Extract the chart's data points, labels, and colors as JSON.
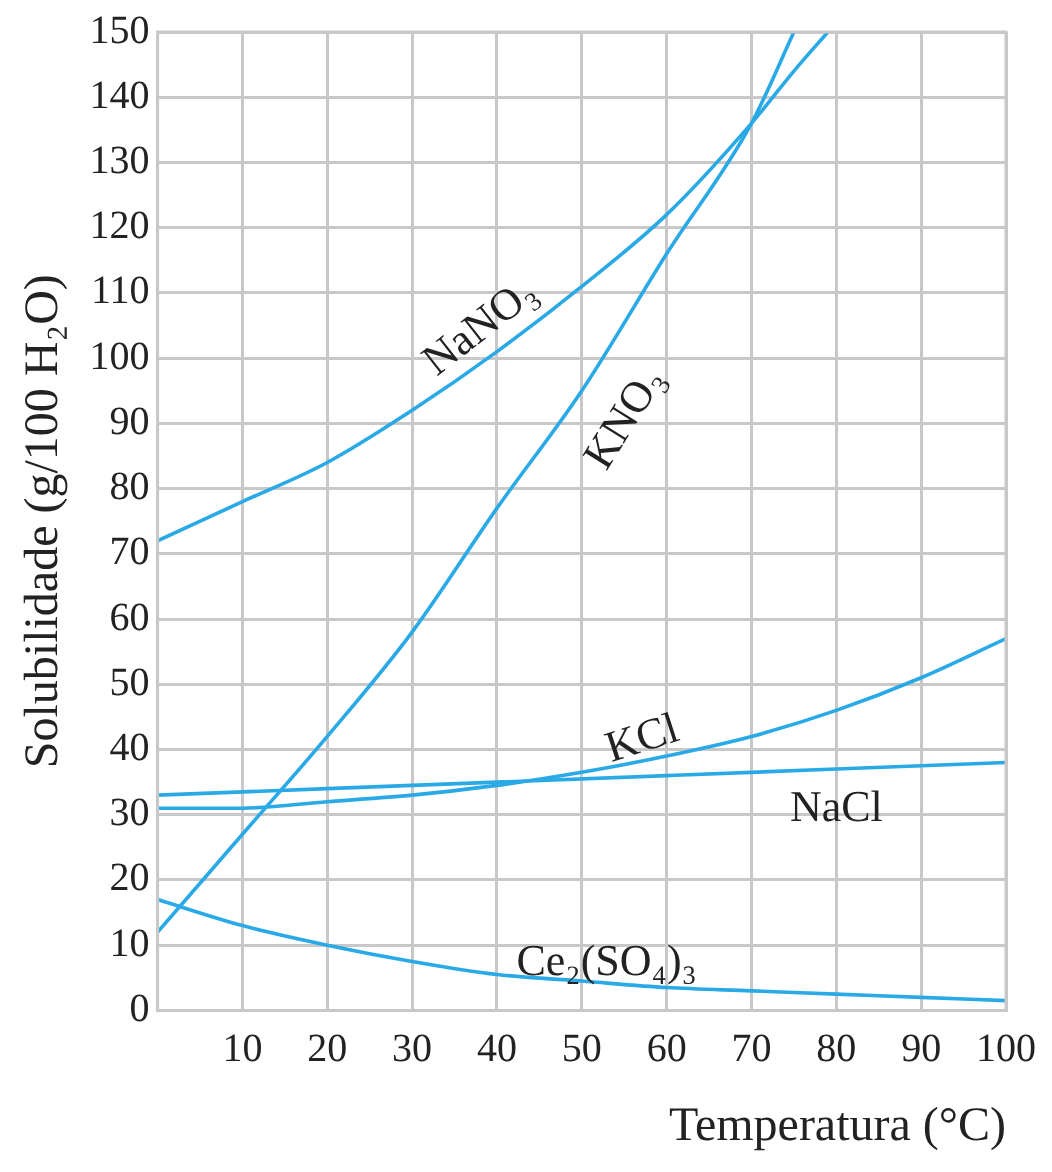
{
  "chart_data": {
    "type": "line",
    "xlabel": "Temperatura (°C)",
    "ylabel": "Solubilidade (g/100 H₂O)",
    "xlim": [
      0,
      100
    ],
    "ylim": [
      0,
      150
    ],
    "xticks": [
      10,
      20,
      30,
      40,
      50,
      60,
      70,
      80,
      90,
      100
    ],
    "yticks": [
      0,
      10,
      20,
      30,
      40,
      50,
      60,
      70,
      80,
      90,
      100,
      110,
      120,
      130,
      140,
      150
    ],
    "grid": true,
    "legend": false,
    "marker": "none",
    "line_style": "solid",
    "series": [
      {
        "name": "NaNO₃",
        "color": "#29a9e6",
        "x": [
          0,
          10,
          20,
          30,
          40,
          50,
          60,
          70,
          75,
          79
        ],
        "values": [
          72,
          78,
          84,
          92,
          101,
          111,
          122,
          136,
          144,
          150
        ]
      },
      {
        "name": "KNO₃",
        "color": "#29a9e6",
        "x": [
          0,
          10,
          20,
          30,
          40,
          50,
          60,
          70,
          75
        ],
        "values": [
          12,
          27,
          42,
          58,
          77,
          95,
          116,
          136,
          150
        ]
      },
      {
        "name": "KCl",
        "color": "#29a9e6",
        "x": [
          0,
          10,
          20,
          30,
          40,
          50,
          60,
          70,
          80,
          90,
          100
        ],
        "values": [
          31,
          31,
          32,
          33,
          34.5,
          36.5,
          39,
          42,
          46,
          51,
          57
        ]
      },
      {
        "name": "NaCl",
        "color": "#29a9e6",
        "x": [
          0,
          20,
          40,
          60,
          80,
          100
        ],
        "values": [
          33,
          34,
          35,
          36,
          37,
          38
        ]
      },
      {
        "name": "Ce₂(SO₄)₃",
        "color": "#29a9e6",
        "x": [
          0,
          10,
          20,
          30,
          40,
          50,
          60,
          70,
          80,
          90,
          100
        ],
        "values": [
          17,
          13,
          10,
          7.5,
          5.5,
          4.5,
          3.5,
          3,
          2.5,
          2,
          1.5
        ]
      }
    ]
  }
}
